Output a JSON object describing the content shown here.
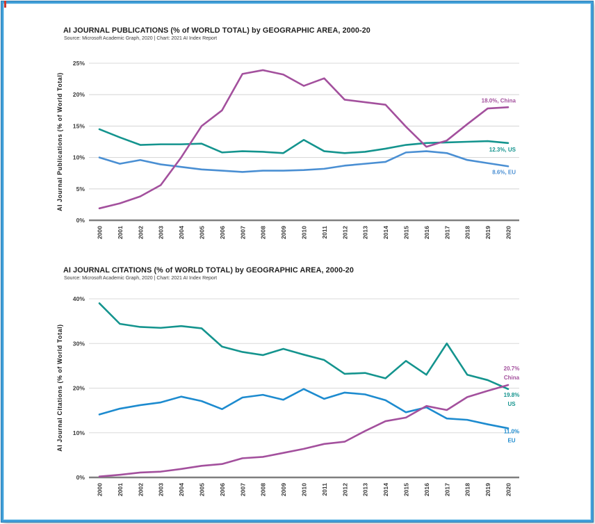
{
  "page": {
    "border_color": "#3f9ed8",
    "corner_mark_color": "#cf392c"
  },
  "chart_data": [
    {
      "type": "line",
      "title": "AI JOURNAL PUBLICATIONS (% of WORLD TOTAL) by GEOGRAPHIC AREA, 2000-20",
      "subtitle": "Source: Microsoft Academic Graph, 2020 | Chart: 2021 AI Index Report",
      "ylabel": "AI Journal Publications (% of World Total)",
      "xlabel": "",
      "categories": [
        2000,
        2001,
        2002,
        2003,
        2004,
        2005,
        2006,
        2007,
        2008,
        2009,
        2010,
        2011,
        2012,
        2013,
        2014,
        2015,
        2016,
        2017,
        2018,
        2019,
        2020
      ],
      "ylim": [
        0,
        25
      ],
      "yticks": [
        0,
        5,
        10,
        15,
        20,
        25
      ],
      "ytick_suffix": "%",
      "grid": true,
      "legend_position": "end-of-line-labels",
      "series": [
        {
          "name": "China",
          "color": "#a3509d",
          "end_label": [
            "18.0%, China"
          ],
          "values": [
            1.9,
            2.7,
            3.8,
            5.6,
            10.0,
            15.0,
            17.5,
            23.3,
            23.9,
            23.2,
            21.4,
            22.6,
            19.2,
            18.8,
            18.4,
            14.9,
            11.7,
            12.7,
            15.3,
            17.8,
            18.0
          ]
        },
        {
          "name": "US",
          "color": "#14948e",
          "end_label": [
            "12.3%, US"
          ],
          "values": [
            14.5,
            13.2,
            12.0,
            12.1,
            12.1,
            12.2,
            10.8,
            11.0,
            10.9,
            10.7,
            12.8,
            11.0,
            10.7,
            10.9,
            11.4,
            12.0,
            12.3,
            12.4,
            12.5,
            12.6,
            12.3
          ]
        },
        {
          "name": "EU",
          "color": "#4a8fd3",
          "end_label": [
            "8.6%, EU"
          ],
          "values": [
            10.0,
            9.0,
            9.6,
            8.9,
            8.5,
            8.1,
            7.9,
            7.7,
            7.9,
            7.9,
            8.0,
            8.2,
            8.7,
            9.0,
            9.3,
            10.8,
            11.0,
            10.7,
            9.6,
            9.1,
            8.6
          ]
        }
      ]
    },
    {
      "type": "line",
      "title": "AI JOURNAL CITATIONS (% of WORLD TOTAL) by GEOGRAPHIC AREA, 2000-20",
      "subtitle": "Source: Microsoft Academic Graph, 2020 | Chart: 2021 AI Index Report",
      "ylabel": "AI Journal Citations (% of World Total)",
      "xlabel": "",
      "categories": [
        2000,
        2001,
        2002,
        2003,
        2004,
        2005,
        2006,
        2007,
        2008,
        2009,
        2010,
        2011,
        2012,
        2013,
        2014,
        2015,
        2016,
        2017,
        2018,
        2019,
        2020
      ],
      "ylim": [
        0,
        40
      ],
      "yticks": [
        0,
        10,
        20,
        30,
        40
      ],
      "ytick_suffix": "%",
      "grid": true,
      "legend_position": "end-of-line-labels",
      "series": [
        {
          "name": "China",
          "color": "#a3509d",
          "end_label": [
            "20.7%",
            "China"
          ],
          "values": [
            0.2,
            0.6,
            1.1,
            1.3,
            1.9,
            2.6,
            3.0,
            4.3,
            4.6,
            5.5,
            6.4,
            7.5,
            8.0,
            10.4,
            12.6,
            13.4,
            16.0,
            15.1,
            18.0,
            19.4,
            20.7
          ]
        },
        {
          "name": "US",
          "color": "#14948e",
          "end_label": [
            "19.8%",
            "US"
          ],
          "values": [
            39.0,
            34.4,
            33.7,
            33.5,
            33.9,
            33.4,
            29.3,
            28.1,
            27.4,
            28.8,
            27.5,
            26.3,
            23.2,
            23.4,
            22.2,
            26.1,
            23.0,
            30.0,
            23.0,
            21.8,
            19.8
          ]
        },
        {
          "name": "EU",
          "color": "#1d8bcf",
          "end_label": [
            "11.0%",
            "EU"
          ],
          "values": [
            14.1,
            15.4,
            16.2,
            16.8,
            18.1,
            17.1,
            15.3,
            17.9,
            18.5,
            17.4,
            19.8,
            17.6,
            19.0,
            18.6,
            17.3,
            14.6,
            15.7,
            13.2,
            12.9,
            11.9,
            11.0
          ]
        }
      ]
    }
  ]
}
